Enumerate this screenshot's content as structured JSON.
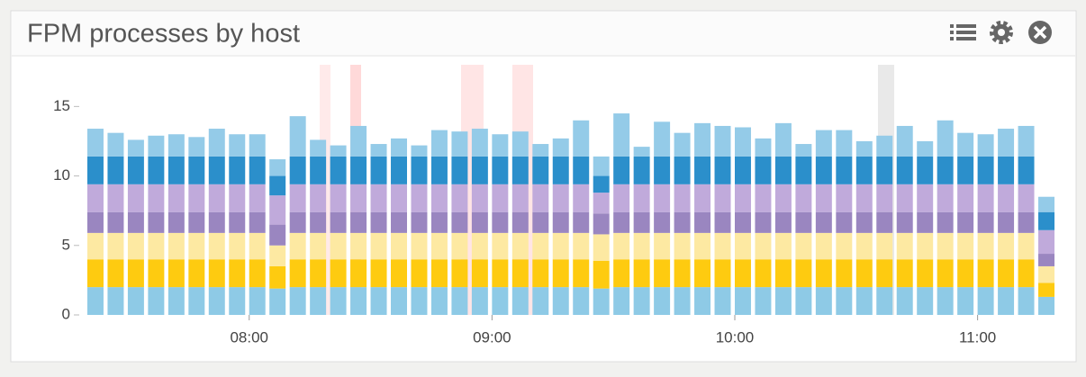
{
  "chart_data": {
    "type": "bar",
    "stacked": true,
    "title": "FPM processes by host",
    "x": [
      "07:20",
      "07:25",
      "07:30",
      "07:35",
      "07:40",
      "07:45",
      "07:50",
      "07:55",
      "08:00",
      "08:05",
      "08:10",
      "08:15",
      "08:20",
      "08:25",
      "08:30",
      "08:35",
      "08:40",
      "08:45",
      "08:50",
      "08:55",
      "09:00",
      "09:05",
      "09:10",
      "09:15",
      "09:20",
      "09:25",
      "09:30",
      "09:35",
      "09:40",
      "09:45",
      "09:50",
      "09:55",
      "10:00",
      "10:05",
      "10:10",
      "10:15",
      "10:20",
      "10:25",
      "10:30",
      "10:35",
      "10:40",
      "10:45",
      "10:50",
      "10:55",
      "11:00",
      "11:05",
      "11:10",
      "11:15"
    ],
    "series": [
      {
        "color": "#8ecae6",
        "values": [
          2.0,
          2.0,
          2.0,
          2.0,
          2.0,
          2.0,
          2.0,
          2.0,
          2.0,
          1.9,
          2.0,
          2.0,
          2.0,
          2.0,
          2.0,
          2.0,
          2.0,
          2.0,
          2.0,
          2.0,
          2.0,
          2.0,
          2.0,
          2.0,
          2.0,
          1.9,
          2.0,
          2.0,
          2.0,
          2.0,
          2.0,
          2.0,
          2.0,
          2.0,
          2.0,
          2.0,
          2.0,
          2.0,
          2.0,
          2.0,
          2.0,
          2.0,
          2.0,
          2.0,
          2.0,
          2.0,
          2.0,
          1.3
        ]
      },
      {
        "color": "#fecb10",
        "values": [
          2.0,
          2.0,
          2.0,
          2.0,
          2.0,
          2.0,
          2.0,
          2.0,
          2.0,
          1.6,
          2.0,
          2.0,
          2.0,
          2.0,
          2.0,
          2.0,
          2.0,
          2.0,
          2.0,
          2.0,
          2.0,
          2.0,
          2.0,
          2.0,
          2.0,
          2.0,
          2.0,
          2.0,
          2.0,
          2.0,
          2.0,
          2.0,
          2.0,
          2.0,
          2.0,
          2.0,
          2.0,
          2.0,
          2.0,
          2.0,
          2.0,
          2.0,
          2.0,
          2.0,
          2.0,
          2.0,
          2.0,
          1.0
        ]
      },
      {
        "color": "#fde9a2",
        "values": [
          1.9,
          1.9,
          1.9,
          1.9,
          1.9,
          1.9,
          1.9,
          1.9,
          1.9,
          1.5,
          1.9,
          1.9,
          1.9,
          1.9,
          1.9,
          1.9,
          1.9,
          1.9,
          1.9,
          1.9,
          1.9,
          1.9,
          1.9,
          1.9,
          1.9,
          1.9,
          1.9,
          1.9,
          1.9,
          1.9,
          1.9,
          1.9,
          1.9,
          1.9,
          1.9,
          1.9,
          1.9,
          1.9,
          1.9,
          1.9,
          1.9,
          1.9,
          1.9,
          1.9,
          1.9,
          1.9,
          1.9,
          1.2
        ]
      },
      {
        "color": "#9a86c0",
        "values": [
          1.5,
          1.5,
          1.5,
          1.5,
          1.5,
          1.5,
          1.5,
          1.5,
          1.5,
          1.5,
          1.5,
          1.5,
          1.5,
          1.5,
          1.5,
          1.5,
          1.5,
          1.5,
          1.5,
          1.5,
          1.5,
          1.5,
          1.5,
          1.5,
          1.5,
          1.5,
          1.5,
          1.5,
          1.5,
          1.5,
          1.5,
          1.5,
          1.5,
          1.5,
          1.5,
          1.5,
          1.5,
          1.5,
          1.5,
          1.5,
          1.5,
          1.5,
          1.5,
          1.5,
          1.5,
          1.5,
          1.5,
          0.9
        ]
      },
      {
        "color": "#c0aadb",
        "values": [
          2.0,
          2.0,
          2.0,
          2.0,
          2.0,
          2.0,
          2.0,
          2.0,
          2.0,
          2.1,
          2.0,
          2.0,
          2.0,
          2.0,
          2.0,
          2.0,
          2.0,
          2.0,
          2.0,
          2.0,
          2.0,
          2.0,
          2.0,
          2.0,
          2.0,
          1.5,
          2.0,
          2.0,
          2.0,
          2.0,
          2.0,
          2.0,
          2.0,
          2.0,
          2.0,
          2.0,
          2.0,
          2.0,
          2.0,
          2.0,
          2.0,
          2.0,
          2.0,
          2.0,
          2.0,
          2.0,
          2.0,
          1.7
        ]
      },
      {
        "color": "#2b8fcb",
        "values": [
          2.0,
          2.0,
          2.0,
          2.0,
          2.0,
          2.0,
          2.0,
          2.0,
          2.0,
          1.4,
          2.0,
          2.0,
          2.0,
          2.0,
          2.0,
          2.0,
          2.0,
          2.0,
          2.0,
          2.0,
          2.0,
          2.0,
          2.0,
          2.0,
          2.0,
          1.2,
          2.0,
          2.0,
          2.0,
          2.0,
          2.0,
          2.0,
          2.0,
          2.0,
          2.0,
          2.0,
          2.0,
          2.0,
          2.0,
          2.0,
          2.0,
          2.0,
          2.0,
          2.0,
          2.0,
          2.0,
          2.0,
          1.3
        ]
      },
      {
        "color": "#94cbe8",
        "values": [
          2.0,
          1.7,
          1.2,
          1.5,
          1.6,
          1.4,
          2.0,
          1.6,
          1.6,
          1.2,
          2.9,
          1.2,
          0.8,
          2.2,
          0.9,
          1.3,
          0.8,
          1.9,
          1.8,
          2.0,
          1.6,
          1.8,
          0.9,
          1.3,
          2.6,
          1.4,
          3.1,
          0.7,
          2.5,
          1.7,
          2.4,
          2.2,
          2.1,
          1.3,
          2.4,
          0.9,
          1.9,
          1.9,
          1.1,
          1.5,
          2.2,
          1.1,
          2.6,
          1.7,
          1.6,
          2.0,
          2.2,
          1.1
        ]
      }
    ],
    "xlim": [
      "07:18",
      "11:19"
    ],
    "xticks": [
      "08:00",
      "09:00",
      "10:00",
      "11:00"
    ],
    "ylim": [
      0,
      18
    ],
    "yticks": [
      0,
      5,
      10,
      15
    ]
  }
}
